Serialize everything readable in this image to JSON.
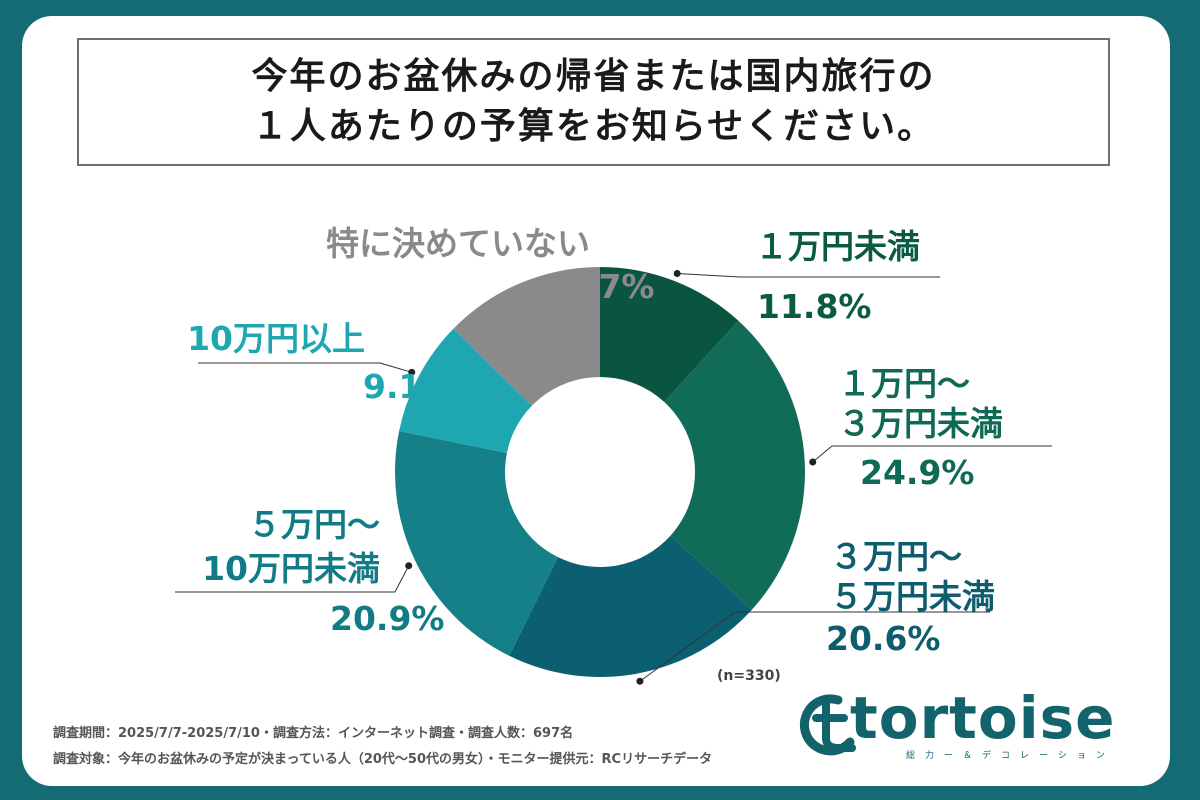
{
  "title_lines": [
    "今年のお盆休みの帰省または国内旅行の",
    "１人あたりの予算をお知らせください。"
  ],
  "chart_data": {
    "type": "pie",
    "donut": true,
    "start": "12 o'clock, clockwise",
    "slices": [
      {
        "label_lines": [
          "１万円未満"
        ],
        "value": 11.8,
        "value_label": "11.8%",
        "color": "#0a5540",
        "label_color": "#0b5a43"
      },
      {
        "label_lines": [
          "１万円～",
          "３万円未満"
        ],
        "value": 24.9,
        "value_label": "24.9%",
        "color": "#106c57",
        "label_color": "#0f6a55"
      },
      {
        "label_lines": [
          "３万円～",
          "５万円未満"
        ],
        "value": 20.6,
        "value_label": "20.6%",
        "color": "#0c5f70",
        "label_color": "#0d5d6e"
      },
      {
        "label_lines": [
          "５万円～",
          "10万円未満"
        ],
        "value": 20.9,
        "value_label": "20.9%",
        "color": "#168089",
        "label_color": "#127c86"
      },
      {
        "label_lines": [
          "10万円以上"
        ],
        "value": 9.1,
        "value_label": "9.1%",
        "color": "#1ea7b1",
        "label_color": "#1ea7b1"
      },
      {
        "label_lines": [
          "特に決めていない"
        ],
        "value": 12.7,
        "value_label": "12.7%",
        "color": "#8a8a8c",
        "label_color": "#8a8a8c"
      }
    ]
  },
  "sample_note": "(n=330)",
  "footer": [
    "調査期間：2025/7/7-2025/7/10・調査方法：インターネット調査・調査人数：697名",
    "調査対象：今年のお盆休みの予定が決まっている人（20代～50代の男女）・モニター提供元：RCリサーチデータ"
  ],
  "logo": {
    "word": "tortoise",
    "sub": "総力ー＆デコレーション"
  }
}
